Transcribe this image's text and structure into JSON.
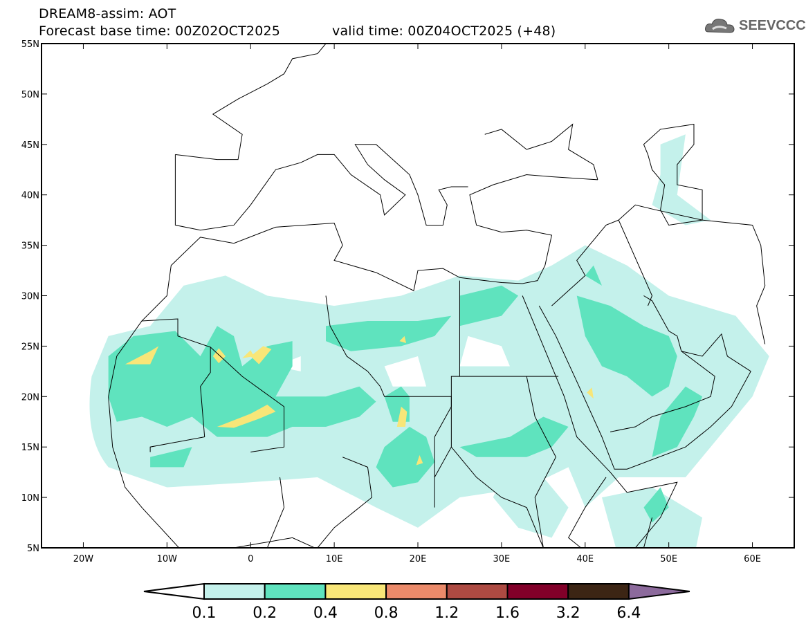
{
  "title": {
    "line1": "DREAM8-assim: AOT",
    "base_time": "Forecast base time: 00Z02OCT2025",
    "valid_time": "valid time: 00Z04OCT2025 (+48)"
  },
  "logo": {
    "text": "SEEVCCC",
    "icon": "cloud-icon"
  },
  "map": {
    "lon_range": [
      -25,
      65
    ],
    "lat_range": [
      5,
      55
    ],
    "lat_labels": [
      "55N",
      "50N",
      "45N",
      "40N",
      "35N",
      "30N",
      "25N",
      "20N",
      "15N",
      "10N",
      "5N"
    ],
    "lon_labels": [
      "20W",
      "10W",
      "0",
      "10E",
      "20E",
      "30E",
      "40E",
      "50E",
      "60E"
    ]
  },
  "colorbar": {
    "levels": [
      "0.1",
      "0.2",
      "0.4",
      "0.8",
      "1.2",
      "1.6",
      "3.2",
      "6.4"
    ],
    "colors": [
      "#ffffff",
      "#c4f1eb",
      "#5fe3be",
      "#f8e678",
      "#eb8a6a",
      "#ad4a42",
      "#820029",
      "#3c2514",
      "#8c6a9c"
    ]
  }
}
